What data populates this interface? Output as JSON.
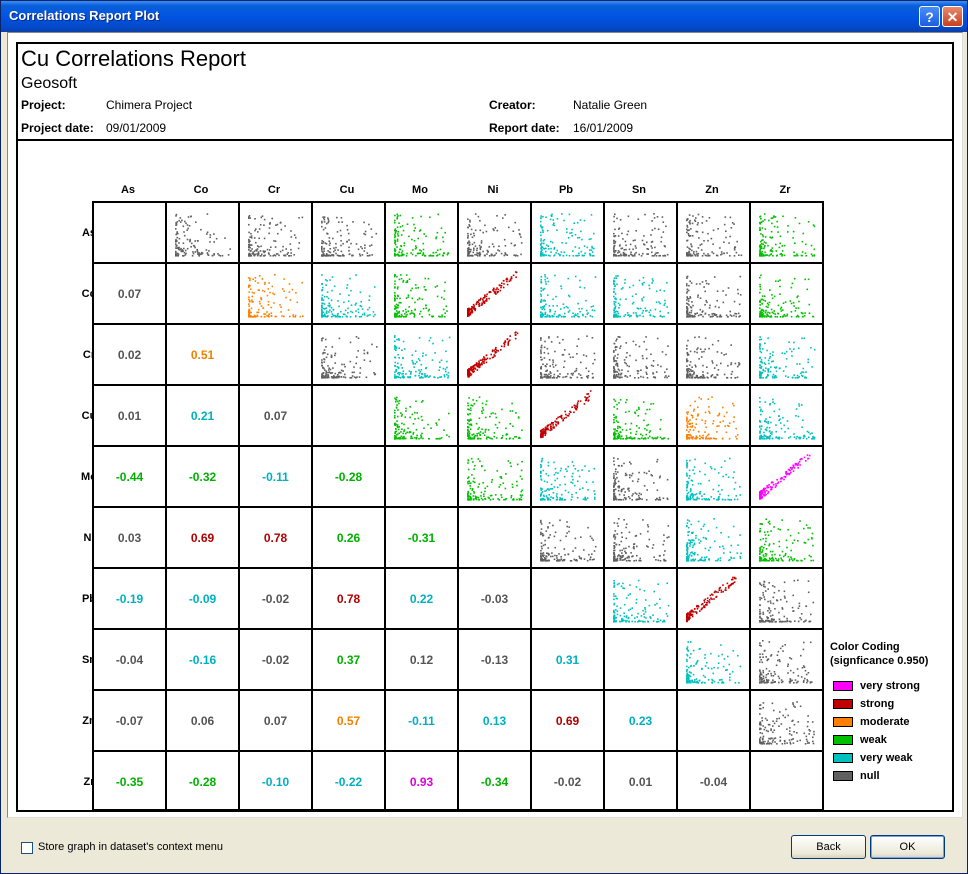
{
  "window": {
    "title": "Correlations Report Plot"
  },
  "report": {
    "title": "Cu Correlations Report",
    "subtitle": "Geosoft",
    "project_label": "Project:",
    "project": "Chimera Project",
    "project_date_label": "Project date:",
    "project_date": "09/01/2009",
    "creator_label": "Creator:",
    "creator": "Natalie Green",
    "report_date_label": "Report date:",
    "report_date": "16/01/2009"
  },
  "matrix": {
    "variables": [
      "As",
      "Co",
      "Cr",
      "Cu",
      "Mo",
      "Ni",
      "Pb",
      "Sn",
      "Zn",
      "Zr"
    ],
    "coefficients": [
      [
        null,
        null,
        null,
        null,
        null,
        null,
        null,
        null,
        null,
        null
      ],
      [
        "0.07",
        null,
        null,
        null,
        null,
        null,
        null,
        null,
        null,
        null
      ],
      [
        "0.02",
        "0.51",
        null,
        null,
        null,
        null,
        null,
        null,
        null,
        null
      ],
      [
        "0.01",
        "0.21",
        "0.07",
        null,
        null,
        null,
        null,
        null,
        null,
        null
      ],
      [
        "-0.44",
        "-0.32",
        "-0.11",
        "-0.28",
        null,
        null,
        null,
        null,
        null,
        null
      ],
      [
        "0.03",
        "0.69",
        "0.78",
        "0.26",
        "-0.31",
        null,
        null,
        null,
        null,
        null
      ],
      [
        "-0.19",
        "-0.09",
        "-0.02",
        "0.78",
        "0.22",
        "-0.03",
        null,
        null,
        null,
        null
      ],
      [
        "-0.04",
        "-0.16",
        "-0.02",
        "0.37",
        "0.12",
        "-0.13",
        "0.31",
        null,
        null,
        null
      ],
      [
        "-0.07",
        "0.06",
        "0.07",
        "0.57",
        "-0.11",
        "0.13",
        "0.69",
        "0.23",
        null,
        null
      ],
      [
        "-0.35",
        "-0.28",
        "-0.10",
        "-0.22",
        "0.93",
        "-0.34",
        "-0.02",
        "0.01",
        "-0.04",
        null
      ]
    ],
    "categories": [
      [
        null,
        null,
        null,
        null,
        null,
        null,
        null,
        null,
        null,
        null
      ],
      [
        "null",
        null,
        null,
        null,
        null,
        null,
        null,
        null,
        null,
        null
      ],
      [
        "null",
        "moderate",
        null,
        null,
        null,
        null,
        null,
        null,
        null,
        null
      ],
      [
        "null",
        "very weak",
        "null",
        null,
        null,
        null,
        null,
        null,
        null,
        null
      ],
      [
        "weak",
        "weak",
        "very weak",
        "weak",
        null,
        null,
        null,
        null,
        null,
        null
      ],
      [
        "null",
        "strong",
        "strong",
        "weak",
        "weak",
        null,
        null,
        null,
        null,
        null
      ],
      [
        "very weak",
        "very weak",
        "null",
        "strong",
        "very weak",
        "null",
        null,
        null,
        null,
        null
      ],
      [
        "null",
        "very weak",
        "null",
        "weak",
        "null",
        "null",
        "very weak",
        null,
        null,
        null
      ],
      [
        "null",
        "null",
        "null",
        "moderate",
        "very weak",
        "very weak",
        "strong",
        "very weak",
        null,
        null
      ],
      [
        "weak",
        "weak",
        "very weak",
        "very weak",
        "very strong",
        "weak",
        "null",
        "null",
        "null",
        null
      ]
    ]
  },
  "legend": {
    "title_line1": "Color Coding",
    "title_line2": "(signficance 0.950)",
    "items": [
      {
        "label": "very strong",
        "color": "#ff00ff"
      },
      {
        "label": "strong",
        "color": "#c00000"
      },
      {
        "label": "moderate",
        "color": "#ff8000"
      },
      {
        "label": "weak",
        "color": "#00c000"
      },
      {
        "label": "very weak",
        "color": "#00c0c0"
      },
      {
        "label": "null",
        "color": "#606060"
      }
    ]
  },
  "text_colors": {
    "very strong": "#e000e0",
    "strong": "#b00000",
    "moderate": "#f08000",
    "weak": "#00b000",
    "very weak": "#00b0c0",
    "null": "#555555"
  },
  "footer": {
    "store_graph_label": "Store graph in dataset's context menu",
    "store_graph_checked": false,
    "back_label": "Back",
    "ok_label": "OK"
  }
}
